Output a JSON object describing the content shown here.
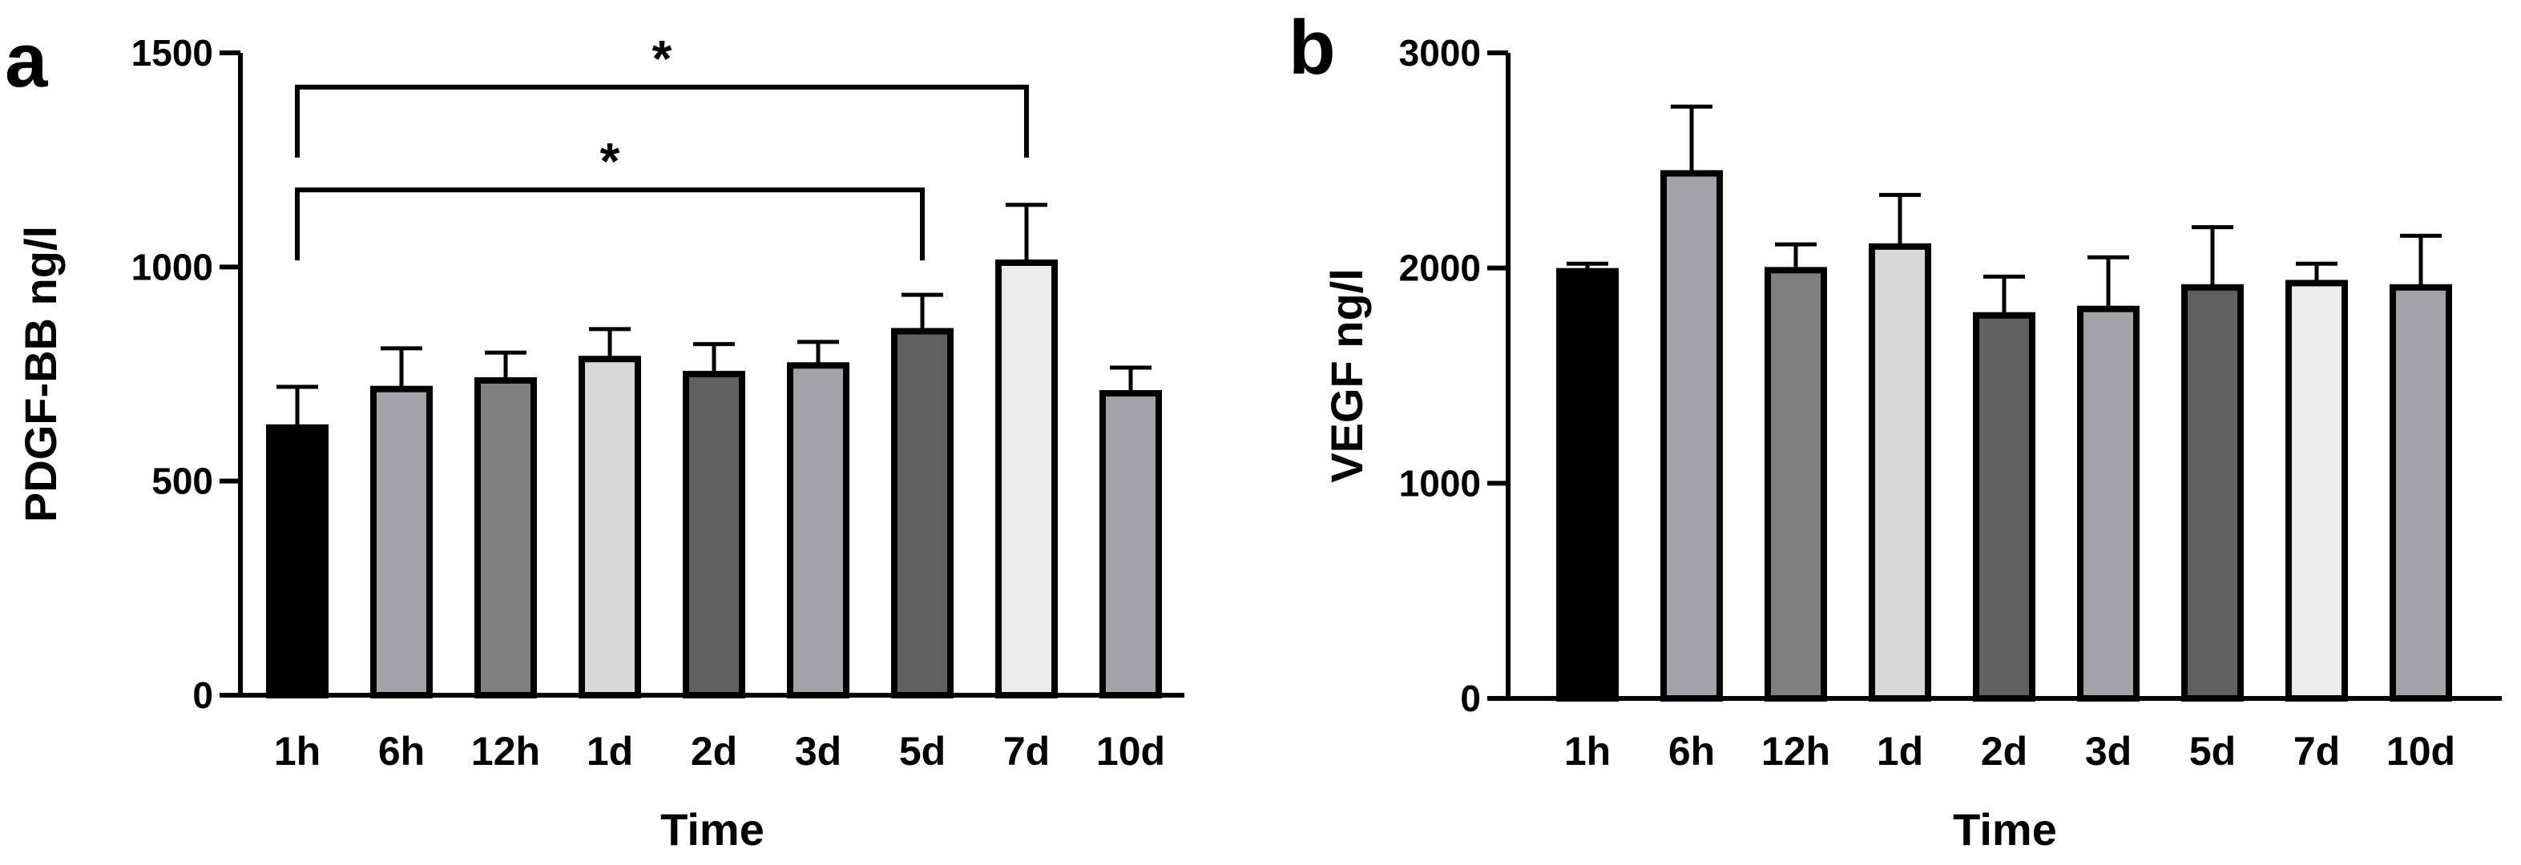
{
  "chart_data": [
    {
      "panel_label": "a",
      "type": "bar",
      "title": "",
      "xlabel": "Time",
      "ylabel": "PDGF-BB ng/l",
      "ylim": [
        0,
        1500
      ],
      "yticks": [
        0,
        500,
        1000,
        1500
      ],
      "categories": [
        "1h",
        "6h",
        "12h",
        "1d",
        "2d",
        "3d",
        "5d",
        "7d",
        "10d"
      ],
      "values": [
        625,
        715,
        735,
        785,
        750,
        770,
        850,
        1010,
        705
      ],
      "error_upper": [
        720,
        810,
        800,
        855,
        820,
        825,
        935,
        1145,
        765
      ],
      "bar_colors": [
        "#000000",
        "#a2a2a8",
        "#808080",
        "#d8d8d8",
        "#606060",
        "#a2a2a8",
        "#606060",
        "#ebebeb",
        "#a2a2a8"
      ],
      "significance": [
        {
          "from": "1h",
          "to": "7d",
          "label": "*",
          "level": 1420
        },
        {
          "from": "1h",
          "to": "5d",
          "label": "*",
          "level": 1180
        }
      ]
    },
    {
      "panel_label": "b",
      "type": "bar",
      "title": "",
      "xlabel": "Time",
      "ylabel": "VEGF ng/l",
      "ylim": [
        0,
        3000
      ],
      "yticks": [
        0,
        1000,
        2000,
        3000
      ],
      "categories": [
        "1h",
        "6h",
        "12h",
        "1d",
        "2d",
        "3d",
        "5d",
        "7d",
        "10d"
      ],
      "values": [
        1985,
        2440,
        1990,
        2100,
        1780,
        1810,
        1910,
        1930,
        1910
      ],
      "error_upper": [
        2020,
        2750,
        2110,
        2340,
        1960,
        2050,
        2190,
        2020,
        2150
      ],
      "bar_colors": [
        "#000000",
        "#a2a2a8",
        "#808080",
        "#d8d8d8",
        "#606060",
        "#a2a2a8",
        "#606060",
        "#ebebeb",
        "#a2a2a8"
      ],
      "significance": []
    }
  ]
}
